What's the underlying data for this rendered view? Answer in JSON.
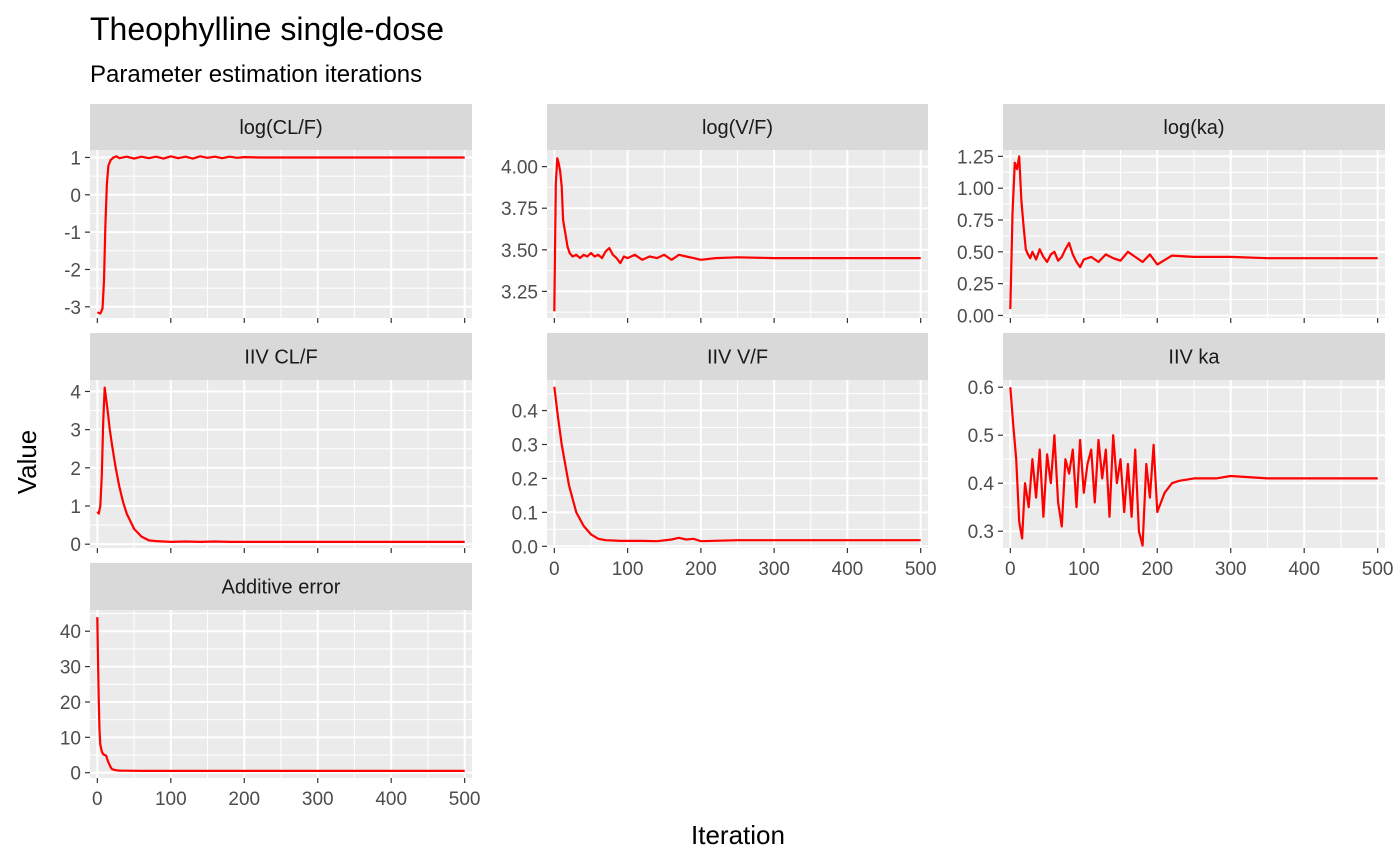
{
  "chart_data": {
    "type": "line",
    "title": "Theophylline single-dose",
    "subtitle": "Parameter estimation iterations",
    "xlabel": "Iteration",
    "ylabel": "Value",
    "line_color": "#ff0000",
    "panel_background": "#ebebeb",
    "strip_background": "#d9d9d9",
    "grid": true,
    "x_ticks": [
      0,
      100,
      200,
      300,
      400,
      500
    ],
    "xlim": [
      -10,
      510
    ],
    "panels": [
      {
        "name": "log(CL/F)",
        "ylim": [
          -3.3,
          1.2
        ],
        "y_ticks": [
          -3,
          -2,
          -1,
          0,
          1
        ],
        "y_tick_labels": [
          "-3",
          "-2",
          "-1",
          "0",
          "1"
        ],
        "x": [
          0,
          4,
          7,
          9,
          11,
          13,
          15,
          18,
          22,
          26,
          30,
          40,
          50,
          60,
          70,
          80,
          90,
          100,
          110,
          120,
          130,
          140,
          150,
          160,
          170,
          180,
          190,
          200,
          220,
          250,
          300,
          350,
          400,
          450,
          500
        ],
        "values": [
          -3.15,
          -3.18,
          -3.05,
          -2.3,
          -0.8,
          0.3,
          0.78,
          0.93,
          1.0,
          1.03,
          0.98,
          1.02,
          0.97,
          1.02,
          0.98,
          1.02,
          0.97,
          1.03,
          0.98,
          1.02,
          0.97,
          1.03,
          0.99,
          1.02,
          0.98,
          1.02,
          0.99,
          1.01,
          1.0,
          1.0,
          1.0,
          1.0,
          1.0,
          1.0,
          1.0
        ]
      },
      {
        "name": "log(V/F)",
        "ylim": [
          3.09,
          4.1
        ],
        "y_ticks": [
          3.25,
          3.5,
          3.75,
          4.0
        ],
        "y_tick_labels": [
          "3.25",
          "3.50",
          "3.75",
          "4.00"
        ],
        "x": [
          0,
          2,
          4,
          6,
          8,
          10,
          12,
          15,
          18,
          21,
          25,
          30,
          35,
          40,
          45,
          50,
          55,
          60,
          65,
          70,
          75,
          80,
          85,
          90,
          95,
          100,
          110,
          120,
          130,
          140,
          150,
          160,
          170,
          180,
          190,
          200,
          220,
          250,
          300,
          350,
          400,
          450,
          500
        ],
        "values": [
          3.13,
          3.9,
          4.05,
          4.02,
          3.97,
          3.88,
          3.68,
          3.6,
          3.52,
          3.48,
          3.46,
          3.47,
          3.45,
          3.47,
          3.46,
          3.48,
          3.46,
          3.47,
          3.45,
          3.49,
          3.51,
          3.47,
          3.45,
          3.42,
          3.46,
          3.45,
          3.47,
          3.44,
          3.46,
          3.45,
          3.47,
          3.44,
          3.47,
          3.46,
          3.45,
          3.44,
          3.45,
          3.455,
          3.45,
          3.45,
          3.45,
          3.45,
          3.45
        ]
      },
      {
        "name": "log(ka)",
        "ylim": [
          -0.02,
          1.3
        ],
        "y_ticks": [
          0.0,
          0.25,
          0.5,
          0.75,
          1.0,
          1.25
        ],
        "y_tick_labels": [
          "0.00",
          "0.25",
          "0.50",
          "0.75",
          "1.00",
          "1.25"
        ],
        "x": [
          0,
          3,
          6,
          9,
          12,
          15,
          18,
          21,
          24,
          27,
          30,
          35,
          40,
          45,
          50,
          55,
          60,
          65,
          70,
          75,
          80,
          85,
          90,
          95,
          100,
          110,
          120,
          130,
          140,
          150,
          160,
          170,
          180,
          190,
          200,
          220,
          250,
          300,
          350,
          400,
          450,
          500
        ],
        "values": [
          0.05,
          0.8,
          1.2,
          1.15,
          1.25,
          0.9,
          0.7,
          0.52,
          0.48,
          0.45,
          0.5,
          0.44,
          0.52,
          0.46,
          0.42,
          0.48,
          0.5,
          0.43,
          0.46,
          0.52,
          0.57,
          0.48,
          0.42,
          0.38,
          0.44,
          0.46,
          0.42,
          0.48,
          0.45,
          0.43,
          0.5,
          0.46,
          0.42,
          0.48,
          0.4,
          0.47,
          0.46,
          0.46,
          0.45,
          0.45,
          0.45,
          0.45
        ]
      },
      {
        "name": "IIV CL/F",
        "ylim": [
          -0.1,
          4.3
        ],
        "y_ticks": [
          0,
          1,
          2,
          3,
          4
        ],
        "y_tick_labels": [
          "0",
          "1",
          "2",
          "3",
          "4"
        ],
        "x": [
          0,
          2,
          4,
          6,
          8,
          10,
          12,
          14,
          17,
          20,
          25,
          30,
          35,
          40,
          50,
          60,
          70,
          80,
          90,
          100,
          120,
          140,
          160,
          180,
          200,
          250,
          300,
          350,
          400,
          450,
          500
        ],
        "values": [
          0.85,
          0.8,
          1.0,
          1.8,
          3.2,
          4.1,
          3.8,
          3.5,
          3.0,
          2.6,
          2.0,
          1.5,
          1.1,
          0.8,
          0.4,
          0.2,
          0.1,
          0.08,
          0.07,
          0.06,
          0.07,
          0.06,
          0.07,
          0.06,
          0.06,
          0.06,
          0.06,
          0.06,
          0.06,
          0.06,
          0.06
        ]
      },
      {
        "name": "IIV V/F",
        "ylim": [
          -0.005,
          0.49
        ],
        "y_ticks": [
          0.0,
          0.1,
          0.2,
          0.3,
          0.4
        ],
        "y_tick_labels": [
          "0.0",
          "0.1",
          "0.2",
          "0.3",
          "0.4"
        ],
        "x": [
          0,
          5,
          10,
          15,
          20,
          25,
          30,
          35,
          40,
          50,
          60,
          70,
          80,
          90,
          100,
          120,
          140,
          160,
          170,
          180,
          190,
          200,
          250,
          300,
          350,
          400,
          450,
          500
        ],
        "values": [
          0.47,
          0.38,
          0.3,
          0.24,
          0.18,
          0.14,
          0.1,
          0.08,
          0.06,
          0.035,
          0.022,
          0.018,
          0.017,
          0.016,
          0.016,
          0.016,
          0.015,
          0.02,
          0.025,
          0.02,
          0.022,
          0.015,
          0.018,
          0.018,
          0.018,
          0.018,
          0.018,
          0.018
        ]
      },
      {
        "name": "IIV ka",
        "ylim": [
          0.265,
          0.615
        ],
        "y_ticks": [
          0.3,
          0.4,
          0.5,
          0.6
        ],
        "y_tick_labels": [
          "0.3",
          "0.4",
          "0.5",
          "0.6"
        ],
        "x": [
          0,
          4,
          8,
          12,
          16,
          20,
          25,
          30,
          35,
          40,
          45,
          50,
          55,
          60,
          65,
          70,
          75,
          80,
          85,
          90,
          95,
          100,
          105,
          110,
          115,
          120,
          125,
          130,
          135,
          140,
          145,
          150,
          155,
          160,
          165,
          170,
          175,
          180,
          185,
          190,
          195,
          200,
          210,
          220,
          230,
          250,
          280,
          300,
          350,
          400,
          450,
          500
        ],
        "values": [
          0.6,
          0.52,
          0.45,
          0.32,
          0.285,
          0.4,
          0.35,
          0.45,
          0.37,
          0.47,
          0.33,
          0.46,
          0.4,
          0.5,
          0.36,
          0.31,
          0.45,
          0.42,
          0.47,
          0.35,
          0.49,
          0.38,
          0.44,
          0.47,
          0.36,
          0.49,
          0.41,
          0.47,
          0.33,
          0.5,
          0.4,
          0.45,
          0.34,
          0.44,
          0.33,
          0.47,
          0.3,
          0.27,
          0.44,
          0.37,
          0.48,
          0.34,
          0.38,
          0.4,
          0.405,
          0.41,
          0.41,
          0.415,
          0.41,
          0.41,
          0.41,
          0.41
        ]
      },
      {
        "name": "Additive error",
        "ylim": [
          -1.5,
          46
        ],
        "y_ticks": [
          0,
          10,
          20,
          30,
          40
        ],
        "y_tick_labels": [
          "0",
          "10",
          "20",
          "30",
          "40"
        ],
        "x": [
          0,
          1,
          2,
          3,
          4,
          6,
          8,
          10,
          12,
          14,
          16,
          18,
          20,
          25,
          30,
          40,
          60,
          100,
          200,
          300,
          400,
          500
        ],
        "values": [
          44,
          30,
          20,
          12,
          8,
          6,
          5.2,
          5.0,
          4.8,
          3.5,
          2.5,
          1.6,
          1.0,
          0.7,
          0.6,
          0.55,
          0.5,
          0.5,
          0.5,
          0.5,
          0.5,
          0.5
        ]
      }
    ]
  }
}
